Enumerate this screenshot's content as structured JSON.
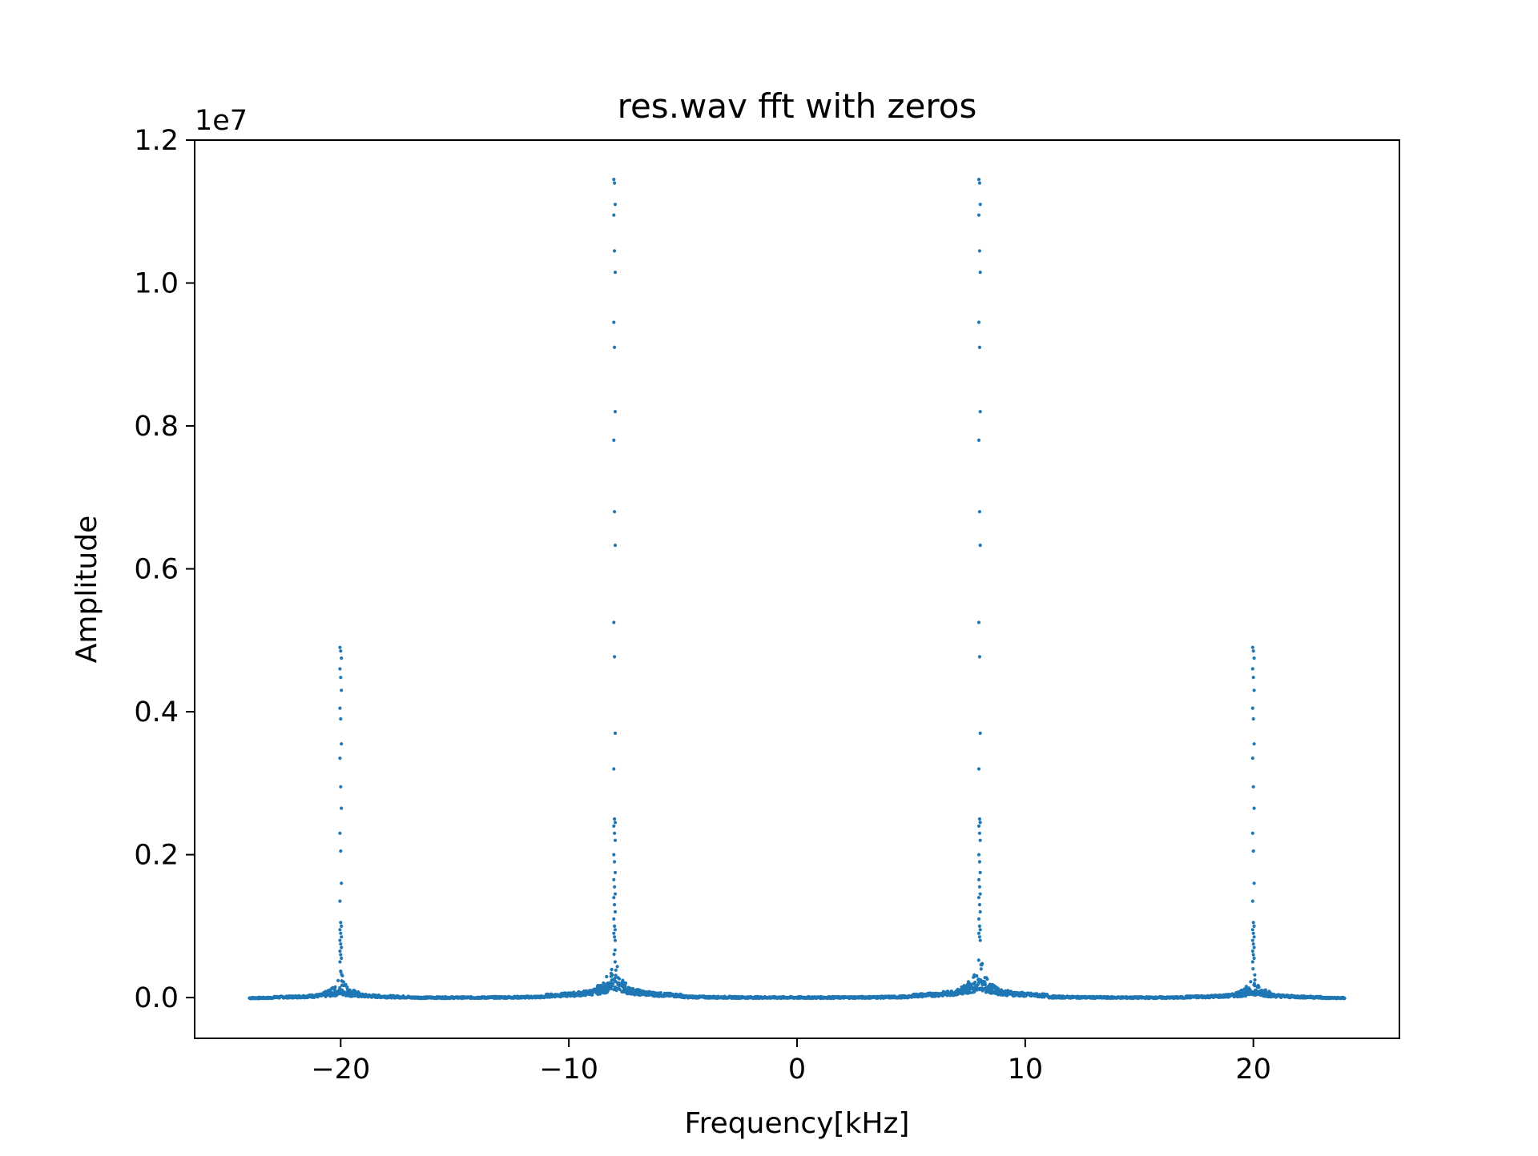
{
  "chart_data": {
    "type": "scatter",
    "title": "res.wav fft with zeros",
    "xlabel": "Frequency[kHz]",
    "ylabel": "Amplitude",
    "y_offset_text": "1e7",
    "xlim": [
      -26.4,
      26.4
    ],
    "ylim": [
      -0.057,
      1.2
    ],
    "y_scale_factor": 10000000,
    "grid": false,
    "marker_color": "#1f77b4",
    "x_ticks": [
      -20,
      -10,
      0,
      10,
      20
    ],
    "x_tick_labels": [
      "−20",
      "−10",
      "0",
      "10",
      "20"
    ],
    "y_ticks": [
      0.0,
      0.2,
      0.4,
      0.6,
      0.8,
      1.0,
      1.2
    ],
    "y_tick_labels": [
      "0.0",
      "0.2",
      "0.4",
      "0.6",
      "0.8",
      "1.0",
      "1.2"
    ],
    "x_range_of_data": [
      -24,
      24
    ],
    "peaks": [
      {
        "frequency": -20,
        "amplitude": 0.49
      },
      {
        "frequency": -8,
        "amplitude": 1.145
      },
      {
        "frequency": 8,
        "amplitude": 1.145
      },
      {
        "frequency": 20,
        "amplitude": 0.49
      }
    ],
    "peak_point_values": {
      "outer": [
        0.49,
        0.485,
        0.475,
        0.46,
        0.448,
        0.43,
        0.405,
        0.39,
        0.355,
        0.335,
        0.295,
        0.265,
        0.23,
        0.205,
        0.16,
        0.135,
        0.105,
        0.1,
        0.095,
        0.09,
        0.085,
        0.08,
        0.075,
        0.07,
        0.065,
        0.06,
        0.055,
        0.05
      ],
      "inner": [
        1.145,
        1.14,
        1.11,
        1.095,
        1.045,
        1.015,
        0.945,
        0.91,
        0.82,
        0.78,
        0.68,
        0.633,
        0.525,
        0.477,
        0.37,
        0.32,
        0.25,
        0.245,
        0.24,
        0.23,
        0.22,
        0.2,
        0.19,
        0.175,
        0.165,
        0.155,
        0.145,
        0.14,
        0.13,
        0.12,
        0.11,
        0.1,
        0.095,
        0.09,
        0.085,
        0.08
      ]
    }
  }
}
